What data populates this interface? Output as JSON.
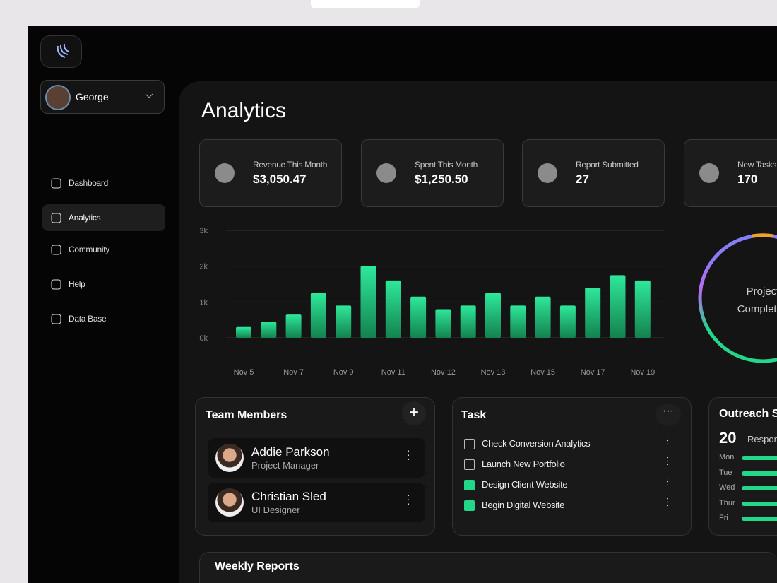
{
  "sidebar": {
    "user": "George",
    "nav": [
      "Dashboard",
      "Analytics",
      "Community",
      "Help",
      "Data Base"
    ],
    "active": 1
  },
  "header": {
    "title": "Analytics"
  },
  "stats": [
    {
      "label": "Revenue This Month",
      "value": "$3,050.47"
    },
    {
      "label": "Spent This Month",
      "value": "$1,250.50"
    },
    {
      "label": "Report Submitted",
      "value": "27"
    },
    {
      "label": "New Tasks",
      "value": "170"
    }
  ],
  "chart_data": {
    "type": "bar",
    "categories": [
      "Nov 5",
      null,
      "Nov 7",
      null,
      "Nov 9",
      null,
      "Nov 11",
      null,
      "Nov 12",
      null,
      "Nov 13",
      null,
      "Nov 15",
      null,
      "Nov 17",
      null,
      "Nov 19"
    ],
    "values": [
      300,
      450,
      650,
      1250,
      900,
      2000,
      1600,
      1150,
      800,
      900,
      1250,
      900,
      1150,
      900,
      1400,
      1750,
      1600
    ],
    "color": "#22d68a",
    "ylim": [
      0,
      3000
    ],
    "yticks": [
      {
        "value": 0,
        "label": "0k"
      },
      {
        "value": 1000,
        "label": "1k"
      },
      {
        "value": 2000,
        "label": "2k"
      },
      {
        "value": 3000,
        "label": "3k"
      }
    ],
    "grid": true
  },
  "gauge": {
    "label": "Project Completed"
  },
  "team": {
    "title": "Team Members",
    "members": [
      {
        "name": "Addie Parkson",
        "role": "Project Manager"
      },
      {
        "name": "Christian Sled",
        "role": "UI Designer"
      }
    ]
  },
  "tasks": {
    "title": "Task",
    "items": [
      {
        "text": "Check Conversion Analytics",
        "done": false
      },
      {
        "text": "Launch New Portfolio",
        "done": false
      },
      {
        "text": "Design Client Website",
        "done": true
      },
      {
        "text": "Begin Digital Website",
        "done": true
      }
    ]
  },
  "outreach": {
    "title": "Outreach Stats",
    "count": 20,
    "count_label": "Responses",
    "days": [
      "Mon",
      "Tue",
      "Wed",
      "Thur",
      "Fri"
    ]
  },
  "weekly": {
    "title": "Weekly Reports"
  }
}
